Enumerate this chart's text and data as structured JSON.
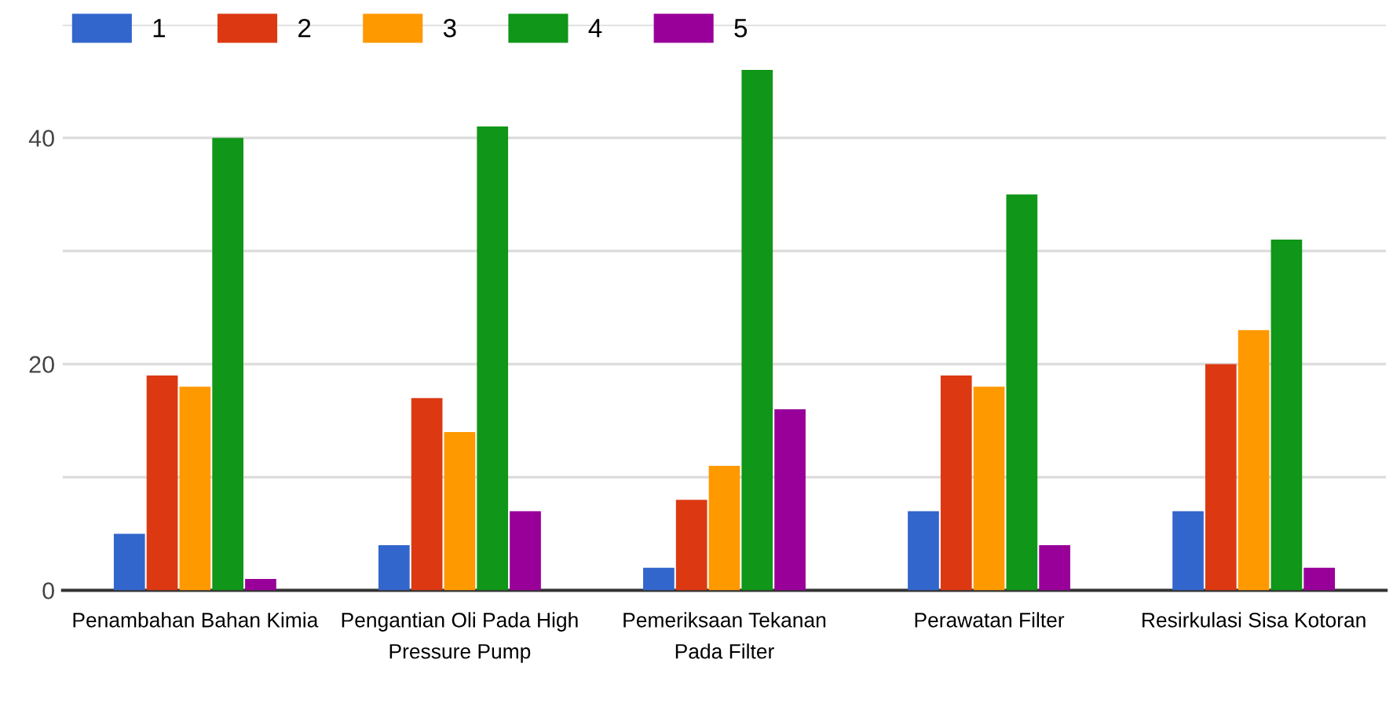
{
  "chart_data": {
    "type": "bar",
    "categories": [
      "Penambahan Bahan Kimia",
      "Pengantian Oli Pada High\nPressure Pump",
      "Pemeriksaan Tekanan\nPada Filter",
      "Perawatan Filter",
      "Resirkulasi Sisa Kotoran"
    ],
    "series": [
      {
        "name": "1",
        "color": "#3366cc",
        "values": [
          5,
          4,
          2,
          7,
          7
        ]
      },
      {
        "name": "2",
        "color": "#dc3912",
        "values": [
          19,
          17,
          8,
          19,
          20
        ]
      },
      {
        "name": "3",
        "color": "#ff9900",
        "values": [
          18,
          14,
          11,
          18,
          23
        ]
      },
      {
        "name": "4",
        "color": "#109618",
        "values": [
          40,
          41,
          46,
          35,
          31
        ]
      },
      {
        "name": "5",
        "color": "#990099",
        "values": [
          1,
          7,
          16,
          4,
          2
        ]
      }
    ],
    "ylim": [
      0,
      50
    ],
    "yticks": [
      0,
      {
        "value": 10,
        "label": null
      },
      20,
      {
        "value": 30,
        "label": null
      },
      40,
      {
        "value": 50,
        "label": null
      }
    ],
    "grid": "y",
    "legend": "top left"
  }
}
